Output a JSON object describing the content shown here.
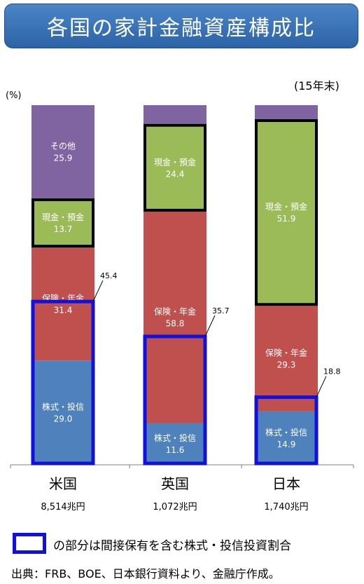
{
  "chart_data": {
    "type": "bar",
    "stacked": true,
    "title": "各国の家計金融資産構成比",
    "unit_label": "(%)",
    "period_label": "(15年末)",
    "categories": [
      "米国",
      "英国",
      "日本"
    ],
    "totals": [
      "8,514兆円",
      "1,072兆円",
      "1,740兆円"
    ],
    "series": [
      {
        "name": "株式・投信",
        "values": [
          29.0,
          11.6,
          14.9
        ],
        "labels": [
          "29.0",
          "11.6",
          "14.9"
        ],
        "color": "#4f81bd"
      },
      {
        "name": "保険・年金",
        "values": [
          31.4,
          58.8,
          29.3
        ],
        "labels": [
          "31.4",
          "58.8",
          "29.3"
        ],
        "color": "#c0504d"
      },
      {
        "name": "現金・預金",
        "values": [
          13.7,
          24.4,
          51.9
        ],
        "labels": [
          "13.7",
          "24.4",
          "51.9"
        ],
        "color": "#9bbb59"
      },
      {
        "name": "その他",
        "values": [
          25.9,
          5.2,
          3.9
        ],
        "labels": [
          "25.9",
          "",
          ""
        ],
        "color": "#8064a2"
      }
    ],
    "indirect_share": {
      "values": [
        45.4,
        35.7,
        18.8
      ],
      "labels": [
        "45.4",
        "35.7",
        "18.8"
      ],
      "color": "#1010e0"
    },
    "ylim": [
      0,
      100
    ],
    "grid": false
  },
  "legend": {
    "text": "の部分は間接保有を含む株式・投信投資割合"
  },
  "source": "出典：FRB、BOE、日本銀行資料より、金融庁作成。"
}
